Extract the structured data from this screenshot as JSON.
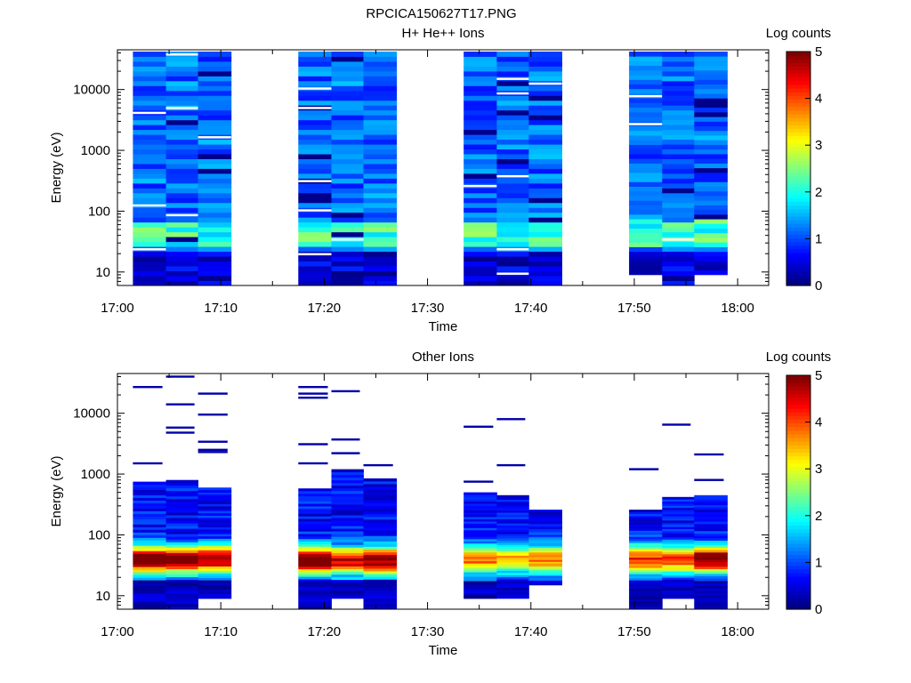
{
  "figure_title": "RPCICA150627T17.PNG",
  "chart_data": [
    {
      "type": "heatmap",
      "title": "H+ He++ Ions",
      "xlabel": "Time",
      "ylabel": "Energy (eV)",
      "x_ticks": [
        "17:00",
        "17:10",
        "17:20",
        "17:30",
        "17:40",
        "17:50",
        "18:00"
      ],
      "xlim": [
        "17:00",
        "18:03"
      ],
      "y_scale": "log",
      "y_ticks": [
        "10",
        "100",
        "1000",
        "10000"
      ],
      "ylim": [
        6,
        45000
      ],
      "colorbar_label": "Log counts",
      "colorbar_range": [
        0,
        5
      ],
      "colorbar_ticks": [
        "0",
        "1",
        "2",
        "3",
        "4",
        "5"
      ],
      "columns": [
        {
          "start": "17:01.5",
          "end": "17:04.7",
          "emin": 6,
          "emax": 42000,
          "profile": "flat",
          "seed": 11
        },
        {
          "start": "17:04.7",
          "end": "17:07.8",
          "emin": 6,
          "emax": 42000,
          "profile": "flat",
          "seed": 12
        },
        {
          "start": "17:07.8",
          "end": "17:11.0",
          "emin": 6,
          "emax": 42000,
          "profile": "flat",
          "seed": 13
        },
        {
          "start": "17:17.5",
          "end": "17:20.7",
          "emin": 6,
          "emax": 42000,
          "profile": "flat",
          "seed": 21
        },
        {
          "start": "17:20.7",
          "end": "17:23.8",
          "emin": 6,
          "emax": 42000,
          "profile": "flat",
          "seed": 22
        },
        {
          "start": "17:23.8",
          "end": "17:27.0",
          "emin": 6,
          "emax": 42000,
          "profile": "flat",
          "seed": 23
        },
        {
          "start": "17:33.5",
          "end": "17:36.7",
          "emin": 6,
          "emax": 42000,
          "profile": "flat",
          "seed": 31
        },
        {
          "start": "17:36.7",
          "end": "17:39.8",
          "emin": 6,
          "emax": 42000,
          "profile": "flat",
          "seed": 32
        },
        {
          "start": "17:39.8",
          "end": "17:43.0",
          "emin": 6,
          "emax": 42000,
          "profile": "flat",
          "seed": 33
        },
        {
          "start": "17:49.5",
          "end": "17:52.7",
          "emin": 9,
          "emax": 42000,
          "profile": "flat",
          "seed": 41
        },
        {
          "start": "17:52.7",
          "end": "17:55.8",
          "emin": 6,
          "emax": 42000,
          "profile": "flat",
          "seed": 42
        },
        {
          "start": "17:55.8",
          "end": "17:59.0",
          "emin": 9,
          "emax": 42000,
          "profile": "flat",
          "seed": 43
        }
      ]
    },
    {
      "type": "heatmap",
      "title": "Other Ions",
      "xlabel": "Time",
      "ylabel": "Energy (eV)",
      "x_ticks": [
        "17:00",
        "17:10",
        "17:20",
        "17:30",
        "17:40",
        "17:50",
        "18:00"
      ],
      "xlim": [
        "17:00",
        "18:03"
      ],
      "y_scale": "log",
      "y_ticks": [
        "10",
        "100",
        "1000",
        "10000"
      ],
      "ylim": [
        6,
        45000
      ],
      "colorbar_label": "Log counts",
      "colorbar_range": [
        0,
        5
      ],
      "colorbar_ticks": [
        "0",
        "1",
        "2",
        "3",
        "4",
        "5"
      ],
      "columns": [
        {
          "start": "17:01.5",
          "end": "17:04.7",
          "emin": 6,
          "emax": 750,
          "profile": "peak",
          "peak_energy": 40,
          "peak_level": 4.6,
          "seed": 51,
          "sparse_lines": [
            1500,
            27000
          ]
        },
        {
          "start": "17:04.7",
          "end": "17:07.8",
          "emin": 6,
          "emax": 800,
          "profile": "peak",
          "peak_energy": 40,
          "peak_level": 4.4,
          "seed": 52,
          "sparse_lines": [
            4800,
            5800,
            14000,
            40000
          ]
        },
        {
          "start": "17:07.8",
          "end": "17:11.0",
          "emin": 9,
          "emax": 600,
          "profile": "peak",
          "peak_energy": 40,
          "peak_level": 4.3,
          "seed": 53,
          "sparse_lines": [
            2300,
            2500,
            3400,
            9500,
            21000
          ]
        },
        {
          "start": "17:17.5",
          "end": "17:20.7",
          "emin": 6,
          "emax": 580,
          "profile": "peak",
          "peak_energy": 38,
          "peak_level": 4.7,
          "seed": 61,
          "sparse_lines": [
            1500,
            3100,
            18000,
            21000,
            27000
          ]
        },
        {
          "start": "17:20.7",
          "end": "17:23.8",
          "emin": 9,
          "emax": 1200,
          "profile": "peak",
          "peak_energy": 38,
          "peak_level": 4.0,
          "seed": 62,
          "sparse_lines": [
            2200,
            3700,
            23000
          ]
        },
        {
          "start": "17:23.8",
          "end": "17:27.0",
          "emin": 6,
          "emax": 850,
          "profile": "peak",
          "peak_energy": 38,
          "peak_level": 4.3,
          "seed": 63,
          "sparse_lines": [
            1400
          ]
        },
        {
          "start": "17:33.5",
          "end": "17:36.7",
          "emin": 9,
          "emax": 500,
          "profile": "peak",
          "peak_energy": 40,
          "peak_level": 3.2,
          "seed": 71,
          "sparse_lines": [
            750,
            6000
          ]
        },
        {
          "start": "17:36.7",
          "end": "17:39.8",
          "emin": 9,
          "emax": 450,
          "profile": "peak",
          "peak_energy": 40,
          "peak_level": 2.9,
          "seed": 72,
          "sparse_lines": [
            1400,
            8000
          ]
        },
        {
          "start": "17:39.8",
          "end": "17:43.0",
          "emin": 15,
          "emax": 260,
          "profile": "peak",
          "peak_energy": 40,
          "peak_level": 3.2,
          "seed": 73,
          "sparse_lines": []
        },
        {
          "start": "17:49.5",
          "end": "17:52.7",
          "emin": 6,
          "emax": 260,
          "profile": "peak",
          "peak_energy": 40,
          "peak_level": 3.6,
          "seed": 81,
          "sparse_lines": [
            1200
          ]
        },
        {
          "start": "17:52.7",
          "end": "17:55.8",
          "emin": 9,
          "emax": 420,
          "profile": "peak",
          "peak_energy": 40,
          "peak_level": 3.4,
          "seed": 82,
          "sparse_lines": [
            6500
          ]
        },
        {
          "start": "17:55.8",
          "end": "17:59.0",
          "emin": 6,
          "emax": 450,
          "profile": "peak",
          "peak_energy": 40,
          "peak_level": 4.6,
          "seed": 83,
          "sparse_lines": [
            800,
            2100
          ]
        }
      ]
    }
  ]
}
